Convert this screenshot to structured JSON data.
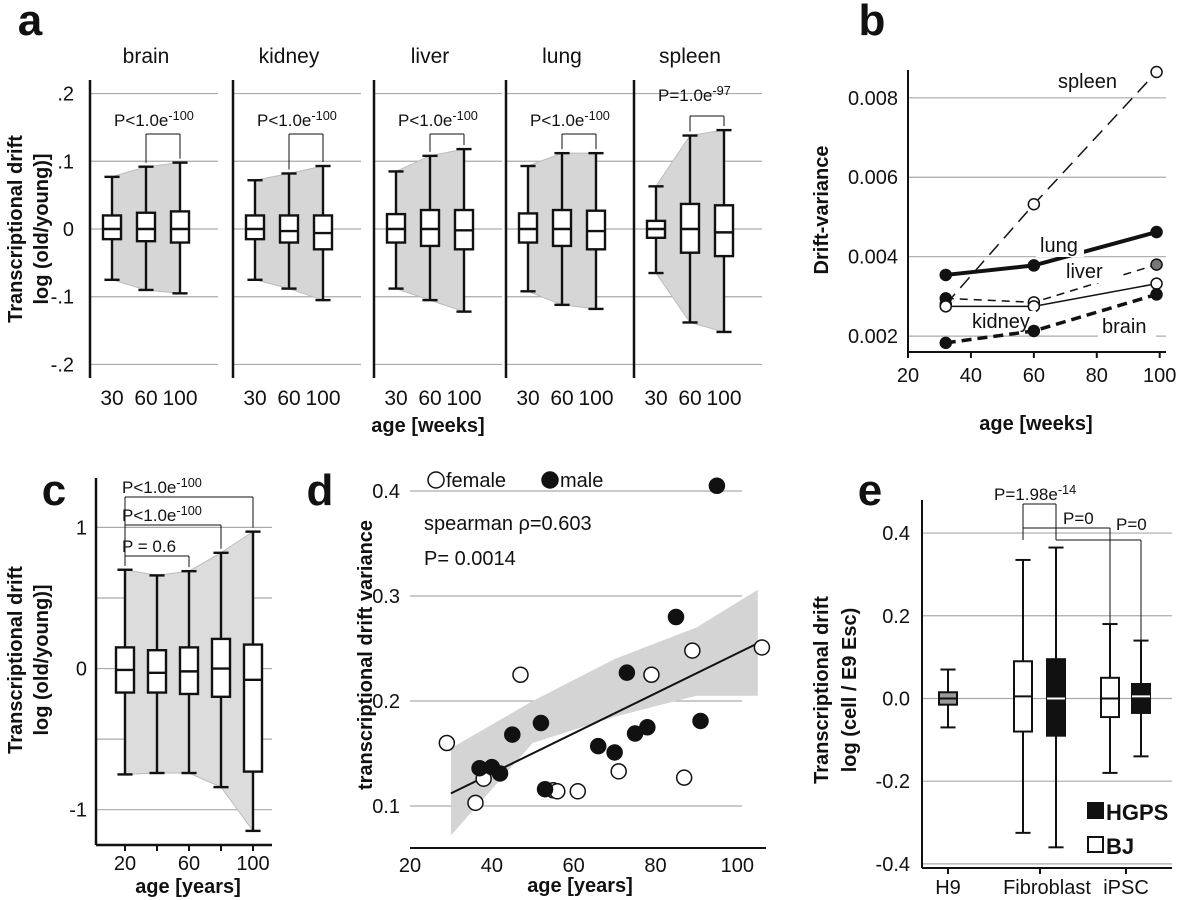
{
  "chart_data": [
    {
      "panel": "a",
      "type": "box",
      "ylabel_line1": "Transcriptional drift",
      "ylabel_line2": "log (old/young)]",
      "xlabel": "age  [weeks]",
      "ylim": [
        -0.22,
        0.22
      ],
      "yticks": [
        0.2,
        0.1,
        0,
        -0.1,
        -0.2
      ],
      "yticklabels": [
        ".2",
        ".1",
        "0",
        "-.1",
        "-.2"
      ],
      "categories": [
        "30",
        "60",
        "100"
      ],
      "grid": true,
      "facets": [
        {
          "name": "brain",
          "pvalue": "P<1.0e",
          "pexp": "-100",
          "boxes": [
            {
              "min": -0.075,
              "q1": -0.015,
              "median": 0.0,
              "q3": 0.02,
              "max": 0.077
            },
            {
              "min": -0.09,
              "q1": -0.018,
              "median": 0.0,
              "q3": 0.024,
              "max": 0.092
            },
            {
              "min": -0.095,
              "q1": -0.02,
              "median": 0.0,
              "q3": 0.026,
              "max": 0.098
            }
          ]
        },
        {
          "name": "kidney",
          "pvalue": "P<1.0e",
          "pexp": "-100",
          "boxes": [
            {
              "min": -0.075,
              "q1": -0.015,
              "median": 0.0,
              "q3": 0.02,
              "max": 0.072
            },
            {
              "min": -0.088,
              "q1": -0.02,
              "median": -0.003,
              "q3": 0.02,
              "max": 0.082
            },
            {
              "min": -0.105,
              "q1": -0.03,
              "median": -0.006,
              "q3": 0.02,
              "max": 0.093
            }
          ]
        },
        {
          "name": "liver",
          "pvalue": "P<1.0e",
          "pexp": "-100",
          "boxes": [
            {
              "min": -0.088,
              "q1": -0.02,
              "median": 0.0,
              "q3": 0.022,
              "max": 0.085
            },
            {
              "min": -0.105,
              "q1": -0.025,
              "median": 0.0,
              "q3": 0.028,
              "max": 0.108
            },
            {
              "min": -0.122,
              "q1": -0.03,
              "median": -0.002,
              "q3": 0.028,
              "max": 0.118
            }
          ]
        },
        {
          "name": "lung",
          "pvalue": "P<1.0e",
          "pexp": "-100",
          "boxes": [
            {
              "min": -0.092,
              "q1": -0.02,
              "median": 0.0,
              "q3": 0.023,
              "max": 0.093
            },
            {
              "min": -0.112,
              "q1": -0.025,
              "median": 0.0,
              "q3": 0.028,
              "max": 0.112
            },
            {
              "min": -0.118,
              "q1": -0.03,
              "median": -0.003,
              "q3": 0.027,
              "max": 0.112
            }
          ]
        },
        {
          "name": "spleen",
          "pvalue": "P=1.0e",
          "pexp": "-97",
          "boxes": [
            {
              "min": -0.065,
              "q1": -0.013,
              "median": 0.0,
              "q3": 0.012,
              "max": 0.063
            },
            {
              "min": -0.138,
              "q1": -0.035,
              "median": 0.0,
              "q3": 0.037,
              "max": 0.138
            },
            {
              "min": -0.152,
              "q1": -0.04,
              "median": -0.005,
              "q3": 0.035,
              "max": 0.146
            }
          ]
        }
      ]
    },
    {
      "panel": "b",
      "type": "line",
      "ylabel": "Drift-variance",
      "xlabel": "age [weeks]",
      "xlim": [
        20,
        102
      ],
      "ylim": [
        0.0016,
        0.0087
      ],
      "xticks": [
        20,
        40,
        60,
        80,
        100
      ],
      "yticks": [
        0.002,
        0.004,
        0.006,
        0.008
      ],
      "yticklabels": [
        "0.002",
        "0.004",
        "0.006",
        "0.008"
      ],
      "grid": true,
      "series": [
        {
          "name": "spleen",
          "x": [
            32,
            60,
            99
          ],
          "y": [
            0.0028,
            0.00532,
            0.00865
          ]
        },
        {
          "name": "lung",
          "x": [
            32,
            60,
            99
          ],
          "y": [
            0.00354,
            0.00378,
            0.00462
          ]
        },
        {
          "name": "liver",
          "x": [
            32,
            60,
            99
          ],
          "y": [
            0.00295,
            0.00285,
            0.0038
          ]
        },
        {
          "name": "kidney",
          "x": [
            32,
            60,
            99
          ],
          "y": [
            0.00275,
            0.00275,
            0.00332
          ]
        },
        {
          "name": "brain",
          "x": [
            32,
            60,
            99
          ],
          "y": [
            0.00183,
            0.00213,
            0.00305
          ]
        }
      ]
    },
    {
      "panel": "c",
      "type": "box",
      "ylabel_line1": "Transcriptional drift",
      "ylabel_line2": "log (old/young)]",
      "xlabel": "age [years]",
      "ylim": [
        -1.25,
        1.35
      ],
      "yticks": [
        1,
        0,
        -1
      ],
      "yticklabels": [
        "1",
        "0",
        "-1"
      ],
      "xticklabels": [
        "20",
        "",
        "60",
        "",
        "100"
      ],
      "grid": true,
      "boxes": [
        {
          "min": -0.75,
          "q1": -0.17,
          "median": -0.01,
          "q3": 0.15,
          "max": 0.7
        },
        {
          "min": -0.74,
          "q1": -0.17,
          "median": -0.03,
          "q3": 0.13,
          "max": 0.66
        },
        {
          "min": -0.74,
          "q1": -0.18,
          "median": -0.02,
          "q3": 0.15,
          "max": 0.69
        },
        {
          "min": -0.84,
          "q1": -0.2,
          "median": 0.0,
          "q3": 0.21,
          "max": 0.82
        },
        {
          "min": -1.15,
          "q1": -0.73,
          "median": -0.08,
          "q3": 0.17,
          "max": 0.97
        }
      ],
      "annotations": [
        {
          "text": "P<1.0e",
          "exp": "-100"
        },
        {
          "text": "P<1.0e",
          "exp": "-100"
        },
        {
          "text": "P = 0.6",
          "exp": ""
        }
      ]
    },
    {
      "panel": "d",
      "type": "scatter",
      "ylabel": "transcriptional drift variance",
      "xlabel": "age [years]",
      "xlim": [
        20,
        107
      ],
      "ylim": [
        0.06,
        0.42
      ],
      "xticks": [
        20,
        40,
        60,
        80,
        100
      ],
      "yticks": [
        0.1,
        0.2,
        0.3,
        0.4
      ],
      "yticklabels": [
        "0.1",
        "0.2",
        "0.3",
        "0.4"
      ],
      "grid": true,
      "legend": [
        "female",
        "male"
      ],
      "stat_line1": "spearman ρ=0.603",
      "stat_line2": "P= 0.0014",
      "fit": {
        "x": [
          30,
          105
        ],
        "y": [
          0.112,
          0.255
        ]
      },
      "band_upper": [
        [
          30,
          0.155
        ],
        [
          50,
          0.2
        ],
        [
          70,
          0.24
        ],
        [
          90,
          0.27
        ],
        [
          105,
          0.306
        ]
      ],
      "band_lower": [
        [
          105,
          0.205
        ],
        [
          90,
          0.205
        ],
        [
          70,
          0.185
        ],
        [
          50,
          0.16
        ],
        [
          30,
          0.072
        ]
      ],
      "series": [
        {
          "name": "female",
          "points": [
            [
              29,
              0.16
            ],
            [
              36,
              0.103
            ],
            [
              38,
              0.126
            ],
            [
              47,
              0.225
            ],
            [
              55,
              0.115
            ],
            [
              56,
              0.114
            ],
            [
              61,
              0.114
            ],
            [
              71,
              0.133
            ],
            [
              79,
              0.225
            ],
            [
              87,
              0.127
            ],
            [
              89,
              0.248
            ],
            [
              106,
              0.251
            ]
          ]
        },
        {
          "name": "male",
          "points": [
            [
              37,
              0.136
            ],
            [
              40,
              0.137
            ],
            [
              42,
              0.131
            ],
            [
              45,
              0.168
            ],
            [
              52,
              0.179
            ],
            [
              53,
              0.116
            ],
            [
              66,
              0.157
            ],
            [
              70,
              0.151
            ],
            [
              73,
              0.227
            ],
            [
              75,
              0.169
            ],
            [
              78,
              0.175
            ],
            [
              85,
              0.28
            ],
            [
              91,
              0.181
            ],
            [
              95,
              0.405
            ]
          ]
        }
      ]
    },
    {
      "panel": "e",
      "type": "box",
      "ylabel_line1": "Transcriptional drift",
      "ylabel_line2": "log  (cell / E9 Esc)",
      "ylim": [
        -0.41,
        0.48
      ],
      "yticks": [
        0.4,
        0.2,
        0.0,
        -0.2,
        -0.4
      ],
      "yticklabels": [
        "0.4",
        "0.2",
        "0.0",
        "-0.2",
        "-0.4"
      ],
      "categories": [
        "H9",
        "Fibroblast",
        "iPSC"
      ],
      "legend": [
        "HGPS",
        "BJ"
      ],
      "grid": true,
      "boxes": [
        {
          "group": "H9",
          "fill": "#9a9a9a",
          "min": -0.07,
          "q1": -0.015,
          "median": 0.0,
          "q3": 0.015,
          "max": 0.07
        },
        {
          "group": "Fibroblast",
          "fill": "#ffffff",
          "min": -0.325,
          "q1": -0.08,
          "median": 0.005,
          "q3": 0.09,
          "max": 0.335
        },
        {
          "group": "Fibroblast",
          "fill": "#111111",
          "min": -0.36,
          "q1": -0.09,
          "median": 0.0,
          "q3": 0.095,
          "max": 0.365
        },
        {
          "group": "iPSC",
          "fill": "#ffffff",
          "min": -0.18,
          "q1": -0.045,
          "median": 0.0,
          "q3": 0.05,
          "max": 0.18
        },
        {
          "group": "iPSC",
          "fill": "#111111",
          "min": -0.14,
          "q1": -0.035,
          "median": 0.005,
          "q3": 0.035,
          "max": 0.14
        }
      ],
      "annotations": [
        {
          "text": "P=1.98e",
          "exp": "-14"
        },
        {
          "text": "P=0",
          "exp": ""
        },
        {
          "text": "P=0",
          "exp": ""
        }
      ]
    }
  ],
  "panel_labels": [
    "a",
    "b",
    "c",
    "d",
    "e"
  ]
}
